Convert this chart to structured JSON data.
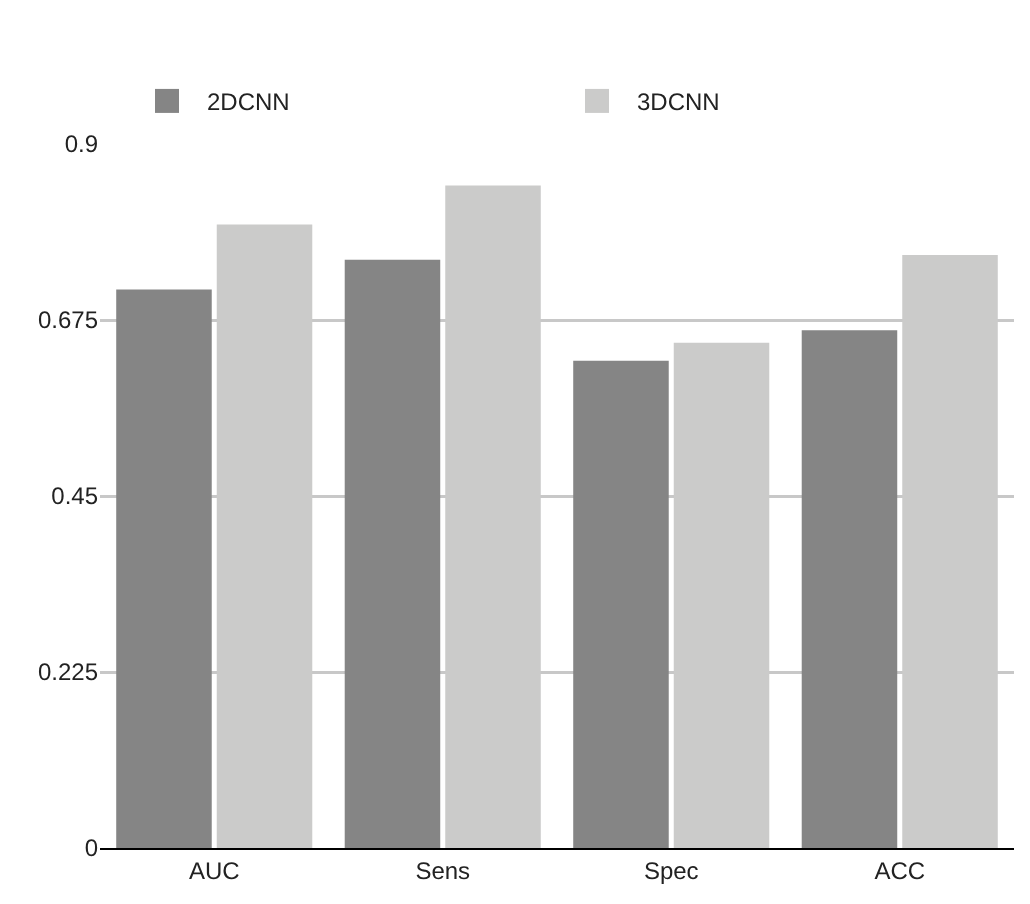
{
  "chart_data": {
    "type": "bar",
    "categories": [
      "AUC",
      "Sens",
      "Spec",
      "ACC"
    ],
    "series": [
      {
        "name": "2DCNN",
        "color": "#858585",
        "values": [
          0.714,
          0.752,
          0.623,
          0.662
        ]
      },
      {
        "name": "3DCNN",
        "color": "#cbcbca",
        "values": [
          0.797,
          0.847,
          0.646,
          0.758
        ]
      }
    ],
    "ylim": [
      0,
      0.9
    ],
    "yticks": [
      0,
      0.225,
      0.45,
      0.675,
      0.9
    ],
    "grid": "y",
    "legend": "top"
  }
}
